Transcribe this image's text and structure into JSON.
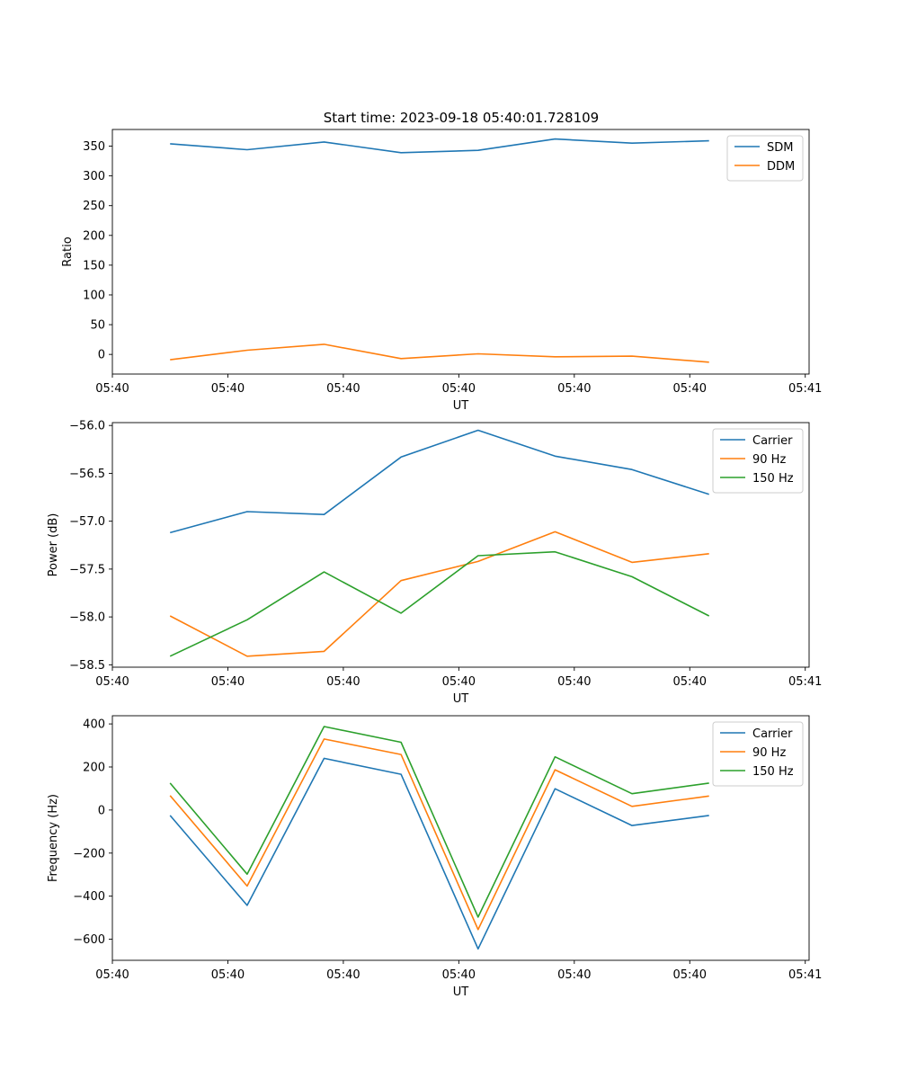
{
  "figure_title": "Start time: 2023-09-18 05:40:01.728109",
  "chart_data": [
    {
      "type": "line",
      "title": "Start time: 2023-09-18 05:40:01.728109",
      "xlabel": "UT",
      "ylabel": "Ratio",
      "x": [
        1,
        2,
        3,
        4,
        5,
        6,
        7,
        8
      ],
      "xlim": [
        0.25,
        9.3
      ],
      "x_ticks": [
        0.25,
        1.75,
        3.25,
        4.75,
        6.25,
        7.75,
        9.25
      ],
      "x_tick_labels": [
        "05:40",
        "05:40",
        "05:40",
        "05:40",
        "05:40",
        "05:40",
        "05:41"
      ],
      "ylim": [
        -33,
        378
      ],
      "y_ticks": [
        0,
        50,
        100,
        150,
        200,
        250,
        300,
        350
      ],
      "legend_position": "top-right",
      "series": [
        {
          "name": "SDM",
          "color": "#1f77b4",
          "values": [
            354,
            344,
            357,
            339,
            343,
            362,
            355,
            359
          ]
        },
        {
          "name": "DDM",
          "color": "#ff7f0e",
          "values": [
            -9,
            7,
            17,
            -7,
            1,
            -4,
            -3,
            -13
          ]
        }
      ]
    },
    {
      "type": "line",
      "xlabel": "UT",
      "ylabel": "Power (dB)",
      "x": [
        1,
        2,
        3,
        4,
        5,
        6,
        7,
        8
      ],
      "xlim": [
        0.25,
        9.3
      ],
      "x_ticks": [
        0.25,
        1.75,
        3.25,
        4.75,
        6.25,
        7.75,
        9.25
      ],
      "x_tick_labels": [
        "05:40",
        "05:40",
        "05:40",
        "05:40",
        "05:40",
        "05:40",
        "05:41"
      ],
      "ylim": [
        -58.525,
        -55.97
      ],
      "y_ticks": [
        -58.5,
        -58.0,
        -57.5,
        -57.0,
        -56.5,
        -56.0
      ],
      "y_tick_labels": [
        "−58.5",
        "−58.0",
        "−57.5",
        "−57.0",
        "−56.5",
        "−56.0"
      ],
      "legend_position": "top-right",
      "series": [
        {
          "name": "Carrier",
          "color": "#1f77b4",
          "values": [
            -57.12,
            -56.9,
            -56.93,
            -56.33,
            -56.05,
            -56.32,
            -56.46,
            -56.72
          ]
        },
        {
          "name": "90 Hz",
          "color": "#ff7f0e",
          "values": [
            -57.99,
            -58.41,
            -58.36,
            -57.62,
            -57.42,
            -57.11,
            -57.43,
            -57.34
          ]
        },
        {
          "name": "150 Hz",
          "color": "#2ca02c",
          "values": [
            -58.41,
            -58.03,
            -57.53,
            -57.96,
            -57.36,
            -57.32,
            -57.58,
            -57.99
          ]
        }
      ]
    },
    {
      "type": "line",
      "xlabel": "UT",
      "ylabel": "Frequency (Hz)",
      "x": [
        1,
        2,
        3,
        4,
        5,
        6,
        7,
        8
      ],
      "xlim": [
        0.25,
        9.3
      ],
      "x_ticks": [
        0.25,
        1.75,
        3.25,
        4.75,
        6.25,
        7.75,
        9.25
      ],
      "x_tick_labels": [
        "05:40",
        "05:40",
        "05:40",
        "05:40",
        "05:40",
        "05:40",
        "05:41"
      ],
      "ylim": [
        -698,
        438
      ],
      "y_ticks": [
        -600,
        -400,
        -200,
        0,
        200,
        400
      ],
      "y_tick_labels": [
        "−600",
        "−400",
        "−200",
        "0",
        "200",
        "400"
      ],
      "legend_position": "top-right",
      "series": [
        {
          "name": "Carrier",
          "color": "#1f77b4",
          "values": [
            -25,
            -443,
            240,
            166,
            -645,
            99,
            -72,
            -25
          ]
        },
        {
          "name": "90 Hz",
          "color": "#ff7f0e",
          "values": [
            67,
            -353,
            330,
            258,
            -555,
            187,
            17,
            65
          ]
        },
        {
          "name": "150 Hz",
          "color": "#2ca02c",
          "values": [
            125,
            -298,
            388,
            315,
            -497,
            247,
            76,
            125
          ]
        }
      ]
    }
  ]
}
